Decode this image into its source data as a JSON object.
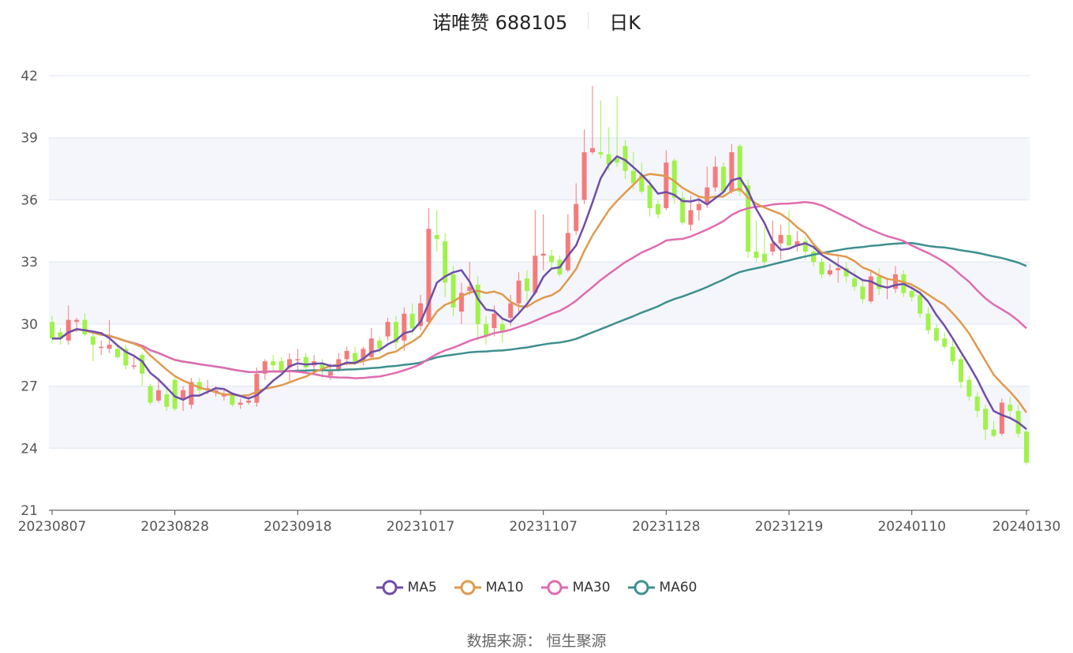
{
  "title": {
    "name": "诺唯赞 688105",
    "period": "日K"
  },
  "source": "数据来源： 恒生聚源",
  "colors": {
    "up": "#f47b7b",
    "down": "#a0f24a",
    "MA5": "#6f4ea8",
    "MA10": "#e09a4e",
    "MA30": "#e06bb0",
    "MA60": "#3f8f8f",
    "grid": "#dde5f2",
    "band": "#f4f6fb"
  },
  "chart_data": {
    "type": "candlestick",
    "y_ticks": [
      "42",
      "39",
      "36",
      "33",
      "30",
      "27",
      "24",
      "21"
    ],
    "ylim": [
      21,
      42
    ],
    "x_tick_labels": [
      "20230807",
      "20230828",
      "20230918",
      "20231017",
      "20231107",
      "20231128",
      "20231219",
      "20240110",
      "20240130"
    ],
    "x_tick_index": [
      0,
      15,
      30,
      45,
      60,
      75,
      90,
      105,
      119
    ],
    "candles": [
      [
        30.1,
        29.3,
        30.4,
        29.1
      ],
      [
        29.6,
        29.3,
        29.8,
        29.0
      ],
      [
        29.2,
        30.2,
        30.9,
        29.0
      ],
      [
        30.1,
        30.2,
        30.3,
        29.6
      ],
      [
        30.2,
        29.5,
        30.5,
        29.4
      ],
      [
        29.4,
        29.0,
        29.6,
        28.2
      ],
      [
        28.9,
        28.9,
        29.2,
        28.5
      ],
      [
        28.8,
        29.0,
        30.2,
        28.6
      ],
      [
        28.8,
        28.4,
        29.0,
        28.3
      ],
      [
        28.8,
        28.0,
        29.0,
        27.8
      ],
      [
        28.0,
        28.0,
        28.4,
        27.8
      ],
      [
        28.5,
        27.6,
        28.6,
        27.0
      ],
      [
        27.0,
        26.2,
        27.1,
        26.1
      ],
      [
        26.3,
        26.8,
        27.3,
        26.2
      ],
      [
        26.6,
        26.0,
        27.0,
        25.8
      ],
      [
        27.3,
        25.9,
        27.4,
        25.8
      ],
      [
        26.4,
        26.8,
        27.0,
        25.8
      ],
      [
        26.1,
        27.2,
        27.4,
        25.9
      ],
      [
        27.2,
        26.8,
        27.4,
        26.6
      ],
      [
        26.8,
        26.9,
        27.3,
        26.6
      ],
      [
        26.7,
        26.8,
        27.0,
        26.5
      ],
      [
        26.5,
        26.6,
        26.8,
        26.3
      ],
      [
        26.6,
        26.1,
        26.7,
        26.0
      ],
      [
        26.1,
        26.2,
        26.4,
        25.9
      ],
      [
        26.2,
        26.3,
        26.5,
        26.1
      ],
      [
        26.2,
        27.6,
        27.9,
        26.0
      ],
      [
        27.6,
        28.2,
        28.3,
        27.3
      ],
      [
        28.2,
        28.0,
        28.5,
        27.7
      ],
      [
        28.2,
        27.7,
        28.4,
        27.5
      ],
      [
        27.9,
        28.3,
        28.6,
        27.2
      ],
      [
        28.3,
        28.3,
        28.8,
        27.8
      ],
      [
        28.4,
        27.9,
        28.6,
        27.7
      ],
      [
        28.0,
        28.2,
        28.5,
        27.6
      ],
      [
        28.1,
        27.8,
        28.3,
        27.4
      ],
      [
        27.5,
        27.7,
        28.1,
        27.3
      ],
      [
        27.8,
        28.3,
        28.6,
        27.7
      ],
      [
        28.3,
        28.7,
        28.9,
        28.0
      ],
      [
        28.6,
        28.1,
        28.9,
        28.0
      ],
      [
        28.2,
        28.8,
        28.9,
        28.0
      ],
      [
        28.4,
        29.3,
        29.8,
        28.3
      ],
      [
        29.2,
        28.8,
        29.4,
        28.6
      ],
      [
        29.4,
        30.1,
        30.3,
        29.2
      ],
      [
        30.1,
        29.1,
        30.4,
        28.8
      ],
      [
        29.2,
        30.5,
        30.8,
        28.7
      ],
      [
        30.5,
        29.8,
        31.0,
        29.5
      ],
      [
        29.9,
        31.0,
        31.4,
        29.7
      ],
      [
        30.1,
        34.6,
        35.6,
        30.0
      ],
      [
        34.3,
        34.1,
        35.5,
        33.5
      ],
      [
        34.0,
        32.0,
        34.4,
        31.3
      ],
      [
        32.4,
        30.8,
        32.8,
        30.4
      ],
      [
        30.6,
        31.5,
        32.0,
        30.0
      ],
      [
        31.6,
        31.8,
        33.0,
        31.4
      ],
      [
        31.9,
        30.0,
        32.3,
        29.2
      ],
      [
        30.0,
        29.4,
        30.4,
        29.0
      ],
      [
        29.8,
        30.5,
        30.9,
        29.4
      ],
      [
        30.0,
        29.6,
        30.3,
        29.1
      ],
      [
        30.3,
        31.0,
        31.4,
        29.9
      ],
      [
        31.0,
        32.1,
        32.5,
        30.6
      ],
      [
        32.2,
        31.6,
        32.6,
        31.1
      ],
      [
        31.5,
        33.3,
        35.5,
        31.4
      ],
      [
        33.3,
        33.4,
        35.3,
        32.6
      ],
      [
        33.3,
        33.0,
        33.6,
        32.7
      ],
      [
        33.1,
        32.4,
        33.3,
        32.3
      ],
      [
        32.6,
        34.4,
        35.3,
        32.5
      ],
      [
        34.5,
        35.8,
        36.8,
        34.3
      ],
      [
        36.0,
        38.3,
        39.4,
        35.8
      ],
      [
        38.3,
        38.5,
        41.5,
        38.2
      ],
      [
        38.3,
        38.2,
        40.8,
        38.0
      ],
      [
        38.2,
        37.7,
        39.5,
        37.4
      ],
      [
        38.0,
        37.8,
        41.0,
        37.6
      ],
      [
        38.6,
        37.4,
        38.9,
        37.0
      ],
      [
        37.4,
        36.8,
        38.3,
        36.5
      ],
      [
        37.2,
        36.4,
        37.8,
        36.3
      ],
      [
        36.7,
        35.6,
        37.0,
        35.2
      ],
      [
        35.8,
        35.3,
        36.0,
        35.1
      ],
      [
        35.6,
        37.8,
        38.4,
        35.5
      ],
      [
        37.9,
        36.1,
        38.0,
        35.8
      ],
      [
        36.1,
        34.9,
        36.4,
        34.8
      ],
      [
        34.8,
        35.5,
        36.2,
        34.5
      ],
      [
        35.5,
        35.8,
        36.2,
        35.0
      ],
      [
        35.8,
        36.6,
        37.6,
        35.6
      ],
      [
        36.6,
        37.6,
        38.1,
        36.4
      ],
      [
        37.6,
        36.4,
        37.8,
        36.2
      ],
      [
        36.4,
        38.3,
        38.7,
        36.3
      ],
      [
        38.6,
        36.4,
        38.7,
        36.2
      ],
      [
        36.7,
        33.5,
        37.0,
        33.2
      ],
      [
        33.5,
        33.2,
        35.0,
        33.0
      ],
      [
        33.4,
        33.0,
        34.7,
        32.7
      ],
      [
        33.5,
        33.9,
        35.0,
        33.3
      ],
      [
        33.9,
        34.3,
        34.8,
        33.1
      ],
      [
        34.3,
        33.8,
        35.5,
        33.7
      ],
      [
        33.8,
        34.0,
        34.5,
        33.5
      ],
      [
        34.0,
        33.5,
        34.2,
        33.1
      ],
      [
        33.5,
        33.0,
        33.8,
        32.8
      ],
      [
        33.0,
        32.4,
        33.2,
        32.2
      ],
      [
        32.4,
        32.6,
        32.9,
        32.3
      ],
      [
        32.6,
        32.7,
        33.3,
        32.0
      ],
      [
        32.7,
        32.3,
        33.0,
        32.0
      ],
      [
        32.2,
        31.8,
        32.6,
        31.6
      ],
      [
        31.8,
        31.2,
        32.2,
        31.0
      ],
      [
        31.1,
        32.3,
        32.6,
        31.0
      ],
      [
        32.3,
        31.7,
        32.7,
        31.4
      ],
      [
        31.8,
        31.8,
        32.2,
        31.2
      ],
      [
        31.7,
        32.4,
        32.8,
        31.5
      ],
      [
        32.4,
        31.5,
        32.6,
        31.3
      ],
      [
        31.6,
        31.3,
        31.9,
        31.1
      ],
      [
        31.4,
        30.5,
        31.6,
        30.3
      ],
      [
        30.5,
        29.7,
        30.8,
        29.5
      ],
      [
        29.8,
        29.2,
        30.0,
        29.1
      ],
      [
        29.3,
        28.9,
        29.6,
        28.8
      ],
      [
        28.9,
        28.2,
        29.2,
        28.0
      ],
      [
        28.3,
        27.2,
        28.5,
        26.9
      ],
      [
        27.3,
        26.5,
        27.5,
        26.3
      ],
      [
        26.5,
        25.8,
        26.7,
        25.5
      ],
      [
        25.9,
        24.9,
        26.1,
        24.4
      ],
      [
        24.9,
        24.6,
        25.3,
        24.5
      ],
      [
        24.7,
        26.2,
        26.4,
        24.6
      ],
      [
        26.1,
        25.8,
        26.5,
        25.5
      ],
      [
        25.8,
        24.7,
        26.1,
        24.5
      ],
      [
        24.8,
        23.3,
        24.9,
        23.2
      ]
    ],
    "series": [
      {
        "name": "MA5"
      },
      {
        "name": "MA10"
      },
      {
        "name": "MA30"
      },
      {
        "name": "MA60"
      }
    ]
  }
}
